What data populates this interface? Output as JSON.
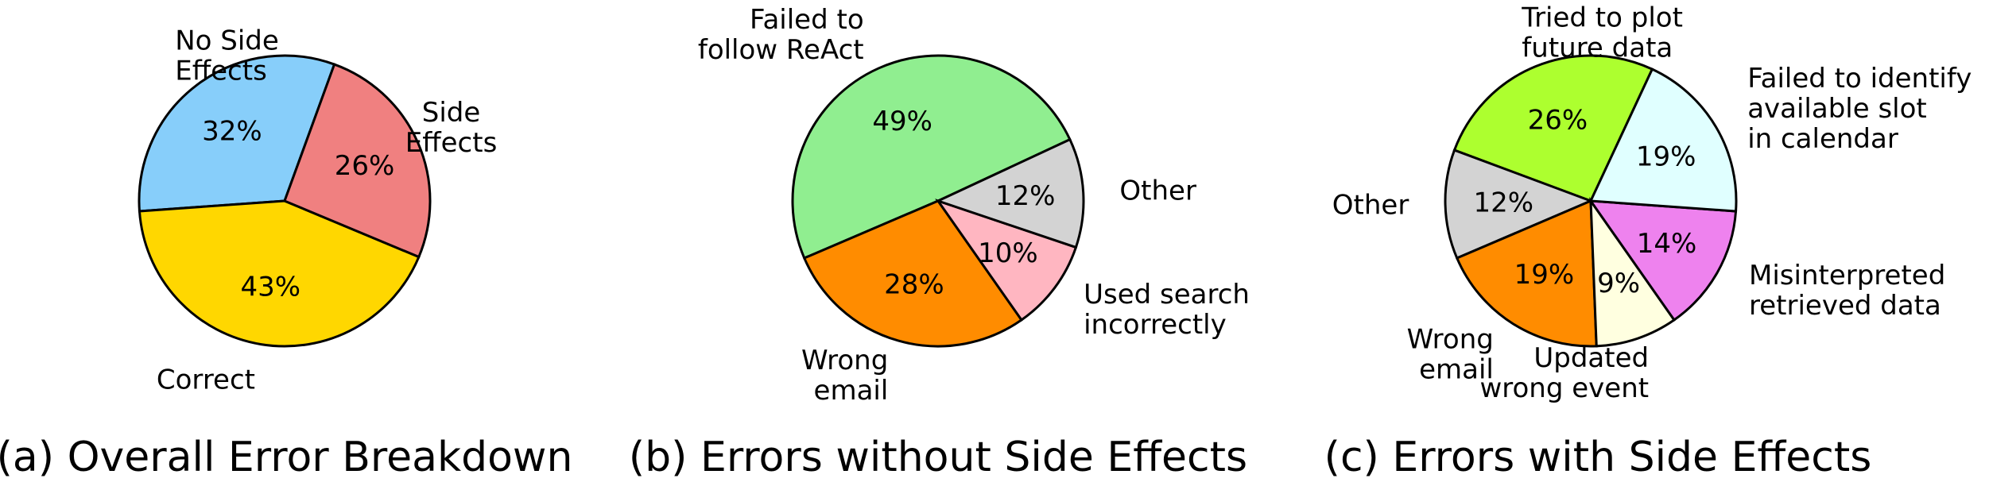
{
  "chart_data": [
    {
      "type": "pie",
      "title": "(a) Overall Error Breakdown",
      "slices": [
        {
          "label": "No Side\nEffects",
          "value": 32,
          "pct_label": "32%",
          "color": "#87CEFA"
        },
        {
          "label": "Correct",
          "value": 43,
          "pct_label": "43%",
          "color": "#FFD700"
        },
        {
          "label": "Side\nEffects",
          "value": 26,
          "pct_label": "26%",
          "color": "#F08080"
        }
      ]
    },
    {
      "type": "pie",
      "title": "(b) Errors without Side Effects",
      "slices": [
        {
          "label": "Failed to\nfollow ReAct",
          "value": 49,
          "pct_label": "49%",
          "color": "#90EE90"
        },
        {
          "label": "Wrong\nemail",
          "value": 28,
          "pct_label": "28%",
          "color": "#FF8C00"
        },
        {
          "label": "Used search\nincorrectly",
          "value": 10,
          "pct_label": "10%",
          "color": "#FFB6C1"
        },
        {
          "label": "Other",
          "value": 12,
          "pct_label": "12%",
          "color": "#D3D3D3"
        }
      ]
    },
    {
      "type": "pie",
      "title": "(c) Errors with Side Effects",
      "slices": [
        {
          "label": "Tried to plot\nfuture data",
          "value": 26,
          "pct_label": "26%",
          "color": "#ADFF2F"
        },
        {
          "label": "Other",
          "value": 12,
          "pct_label": "12%",
          "color": "#D3D3D3"
        },
        {
          "label": "Wrong\nemail",
          "value": 19,
          "pct_label": "19%",
          "color": "#FF8C00"
        },
        {
          "label": "Updated\nwrong event",
          "value": 9,
          "pct_label": "9%",
          "color": "#FFFFE0"
        },
        {
          "label": "Misinterpreted\nretrieved data",
          "value": 14,
          "pct_label": "14%",
          "color": "#EE82EE"
        },
        {
          "label": "Failed to identify\navailable slot\nin calendar",
          "value": 19,
          "pct_label": "19%",
          "color": "#E0FFFF"
        }
      ]
    }
  ]
}
